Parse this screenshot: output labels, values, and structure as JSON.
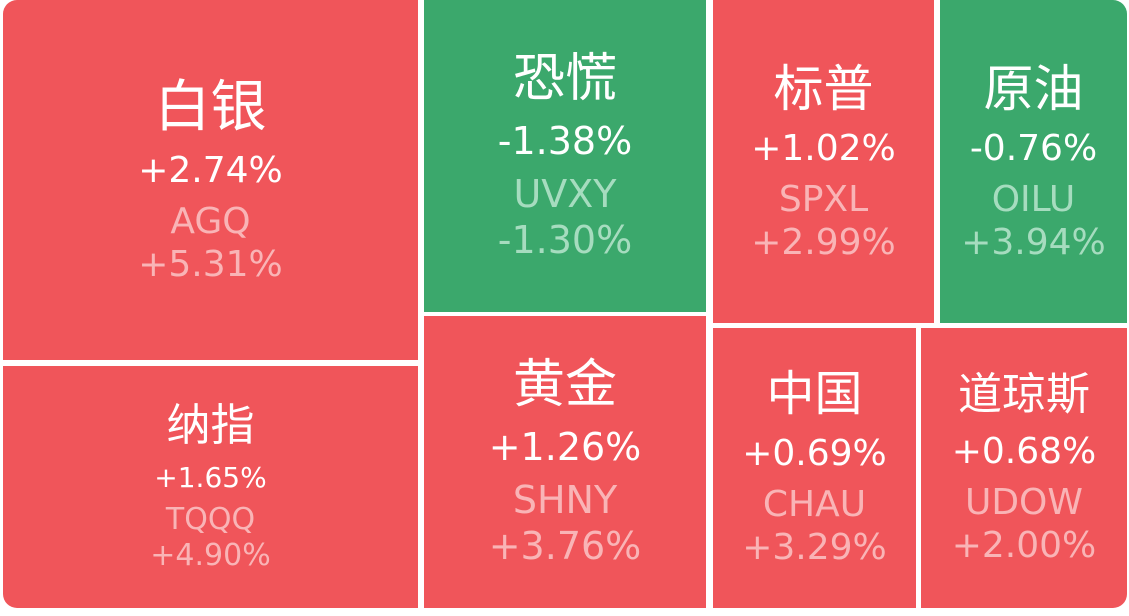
{
  "tiles": [
    {
      "name": "白银",
      "change": "+2.74%",
      "ticker": "AGQ",
      "ticker_change": "+5.31%"
    },
    {
      "name": "纳指",
      "change": "+1.65%",
      "ticker": "TQQQ",
      "ticker_change": "+4.90%"
    },
    {
      "name": "恐慌",
      "change": "-1.38%",
      "ticker": "UVXY",
      "ticker_change": "-1.30%"
    },
    {
      "name": "黄金",
      "change": "+1.26%",
      "ticker": "SHNY",
      "ticker_change": "+3.76%"
    },
    {
      "name": "标普",
      "change": "+1.02%",
      "ticker": "SPXL",
      "ticker_change": "+2.99%"
    },
    {
      "name": "原油",
      "change": "-0.76%",
      "ticker": "OILU",
      "ticker_change": "+3.94%"
    },
    {
      "name": "中国",
      "change": "+0.69%",
      "ticker": "CHAU",
      "ticker_change": "+3.29%"
    },
    {
      "name": "道琼斯",
      "change": "+0.68%",
      "ticker": "UDOW",
      "ticker_change": "+2.00%"
    }
  ]
}
